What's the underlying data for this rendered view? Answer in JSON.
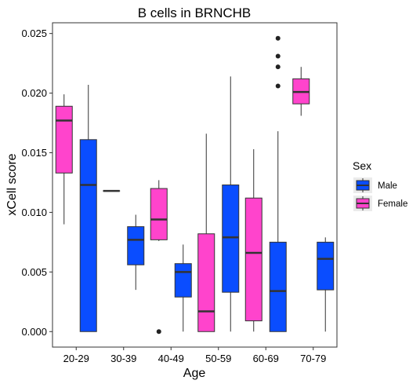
{
  "chart_data": {
    "type": "boxplot",
    "title": "B cells in BRNCHB",
    "xlabel": "Age",
    "ylabel": "xCell score",
    "categories": [
      "20-29",
      "30-39",
      "40-49",
      "50-59",
      "60-69",
      "70-79"
    ],
    "ylim": [
      -0.0013,
      0.0259
    ],
    "yticks": [
      0.0,
      0.005,
      0.01,
      0.015,
      0.02,
      0.025
    ],
    "ytick_labels": [
      "0.000",
      "0.005",
      "0.010",
      "0.015",
      "0.020",
      "0.025"
    ],
    "grid": false,
    "legend": {
      "title": "Sex",
      "position": "right",
      "entries": [
        "Male",
        "Female"
      ]
    },
    "series": [
      {
        "name": "Female",
        "color": "#ff44cc",
        "boxes": [
          {
            "category": "20-29",
            "min": 0.009,
            "q1": 0.0133,
            "median": 0.0177,
            "q3": 0.0189,
            "max": 0.0199,
            "outliers": []
          },
          {
            "category": "30-39",
            "min": 0.0118,
            "q1": 0.0118,
            "median": 0.0118,
            "q3": 0.0118,
            "max": 0.0118,
            "outliers": []
          },
          {
            "category": "40-49",
            "min": 0.0076,
            "q1": 0.0077,
            "median": 0.0094,
            "q3": 0.012,
            "max": 0.0127,
            "outliers": [
              0.0
            ]
          },
          {
            "category": "50-59",
            "min": 0.0,
            "q1": 0.0,
            "median": 0.0017,
            "q3": 0.0082,
            "max": 0.0166,
            "outliers": []
          },
          {
            "category": "60-69",
            "min": 0.0,
            "q1": 0.0009,
            "median": 0.0066,
            "q3": 0.0112,
            "max": 0.0153,
            "outliers": []
          },
          {
            "category": "70-79",
            "min": 0.0181,
            "q1": 0.0191,
            "median": 0.0201,
            "q3": 0.0212,
            "max": 0.0222,
            "outliers": []
          }
        ]
      },
      {
        "name": "Male",
        "color": "#0a4dff",
        "boxes": [
          {
            "category": "20-29",
            "min": 0.0,
            "q1": 0.0,
            "median": 0.0123,
            "q3": 0.0161,
            "max": 0.0207,
            "outliers": []
          },
          {
            "category": "30-39",
            "min": 0.0035,
            "q1": 0.0056,
            "median": 0.0077,
            "q3": 0.0088,
            "max": 0.0098,
            "outliers": []
          },
          {
            "category": "40-49",
            "min": 0.0,
            "q1": 0.0029,
            "median": 0.005,
            "q3": 0.0057,
            "max": 0.0073,
            "outliers": []
          },
          {
            "category": "50-59",
            "min": 0.0,
            "q1": 0.0033,
            "median": 0.0079,
            "q3": 0.0123,
            "max": 0.0214,
            "outliers": []
          },
          {
            "category": "60-69",
            "min": 0.0,
            "q1": 0.0,
            "median": 0.0034,
            "q3": 0.0075,
            "max": 0.0168,
            "outliers": [
              0.0206,
              0.0222,
              0.0231,
              0.0246
            ]
          },
          {
            "category": "70-79",
            "min": 0.0,
            "q1": 0.0035,
            "median": 0.0061,
            "q3": 0.0075,
            "max": 0.0079,
            "outliers": []
          }
        ]
      }
    ]
  }
}
